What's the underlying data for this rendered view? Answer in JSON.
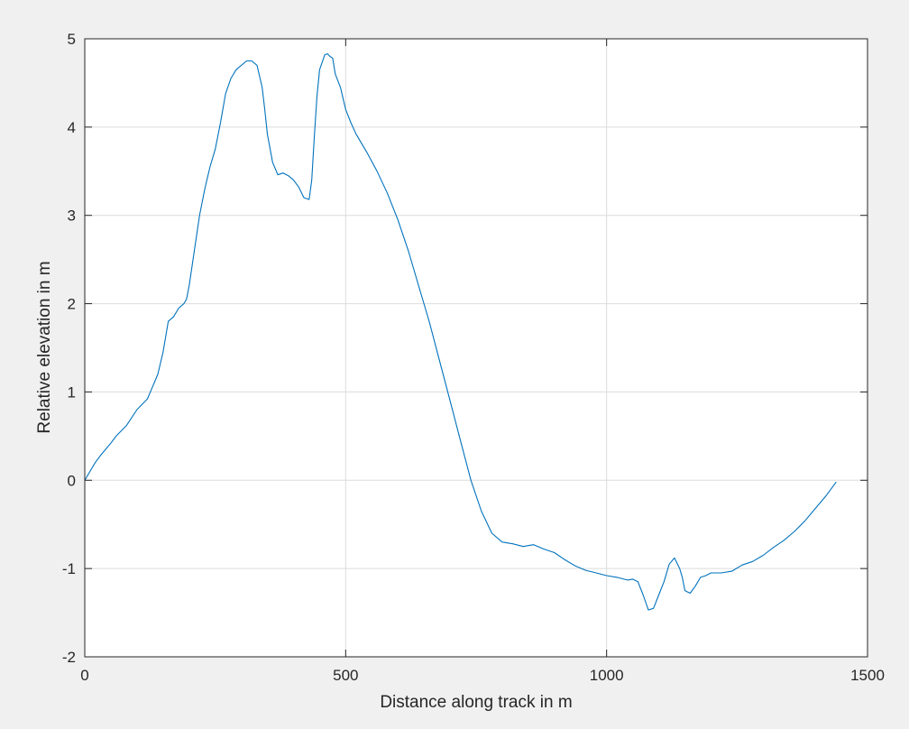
{
  "chart_data": {
    "type": "line",
    "title": "",
    "xlabel": "Distance along track in m",
    "ylabel": "Relative elevation in m",
    "xlim": [
      0,
      1500
    ],
    "ylim": [
      -2,
      5
    ],
    "xticks": [
      0,
      500,
      1000,
      1500
    ],
    "xtick_labels": [
      "0",
      "500",
      "1000",
      "1500"
    ],
    "yticks": [
      -2,
      -1,
      0,
      1,
      2,
      3,
      4,
      5
    ],
    "ytick_labels": [
      "-2",
      "-1",
      "0",
      "1",
      "2",
      "3",
      "4",
      "5"
    ],
    "grid": true,
    "colors": {
      "line": "#0072bd",
      "grid": "#dcdcdc",
      "axes": "#262626",
      "plot_bg": "#ffffff",
      "figure_bg": "#f0f0f0"
    },
    "series": [
      {
        "x": [
          0,
          10,
          20,
          30,
          40,
          50,
          60,
          70,
          80,
          100,
          120,
          140,
          150,
          160,
          170,
          180,
          190,
          195,
          200,
          210,
          220,
          230,
          240,
          250,
          260,
          270,
          280,
          290,
          300,
          310,
          320,
          330,
          340,
          345,
          350,
          360,
          370,
          380,
          390,
          400,
          410,
          420,
          430,
          435,
          440,
          445,
          450,
          460,
          465,
          470,
          475,
          480,
          490,
          500,
          510,
          520,
          540,
          560,
          580,
          600,
          620,
          640,
          660,
          680,
          700,
          720,
          740,
          760,
          780,
          800,
          820,
          840,
          860,
          880,
          900,
          920,
          940,
          960,
          980,
          1000,
          1020,
          1040,
          1050,
          1060,
          1070,
          1080,
          1090,
          1100,
          1110,
          1120,
          1130,
          1140,
          1145,
          1150,
          1160,
          1170,
          1180,
          1190,
          1200,
          1220,
          1240,
          1260,
          1280,
          1300,
          1320,
          1340,
          1360,
          1380,
          1400,
          1420,
          1440
        ],
        "y": [
          0.0,
          0.1,
          0.2,
          0.28,
          0.35,
          0.42,
          0.5,
          0.56,
          0.62,
          0.8,
          0.92,
          1.2,
          1.45,
          1.8,
          1.85,
          1.95,
          2.0,
          2.05,
          2.2,
          2.6,
          3.0,
          3.3,
          3.55,
          3.75,
          4.05,
          4.38,
          4.55,
          4.65,
          4.7,
          4.75,
          4.75,
          4.7,
          4.45,
          4.2,
          3.92,
          3.6,
          3.46,
          3.48,
          3.45,
          3.4,
          3.32,
          3.2,
          3.18,
          3.4,
          3.9,
          4.35,
          4.65,
          4.82,
          4.83,
          4.8,
          4.78,
          4.6,
          4.45,
          4.2,
          4.05,
          3.92,
          3.72,
          3.5,
          3.25,
          2.95,
          2.6,
          2.2,
          1.8,
          1.35,
          0.9,
          0.45,
          0.0,
          -0.35,
          -0.6,
          -0.7,
          -0.72,
          -0.75,
          -0.73,
          -0.78,
          -0.82,
          -0.9,
          -0.97,
          -1.02,
          -1.05,
          -1.08,
          -1.1,
          -1.13,
          -1.12,
          -1.15,
          -1.3,
          -1.47,
          -1.45,
          -1.3,
          -1.15,
          -0.95,
          -0.88,
          -1.0,
          -1.1,
          -1.25,
          -1.28,
          -1.2,
          -1.1,
          -1.08,
          -1.05,
          -1.05,
          -1.03,
          -0.96,
          -0.92,
          -0.85,
          -0.76,
          -0.68,
          -0.58,
          -0.46,
          -0.32,
          -0.18,
          -0.02
        ]
      }
    ]
  }
}
